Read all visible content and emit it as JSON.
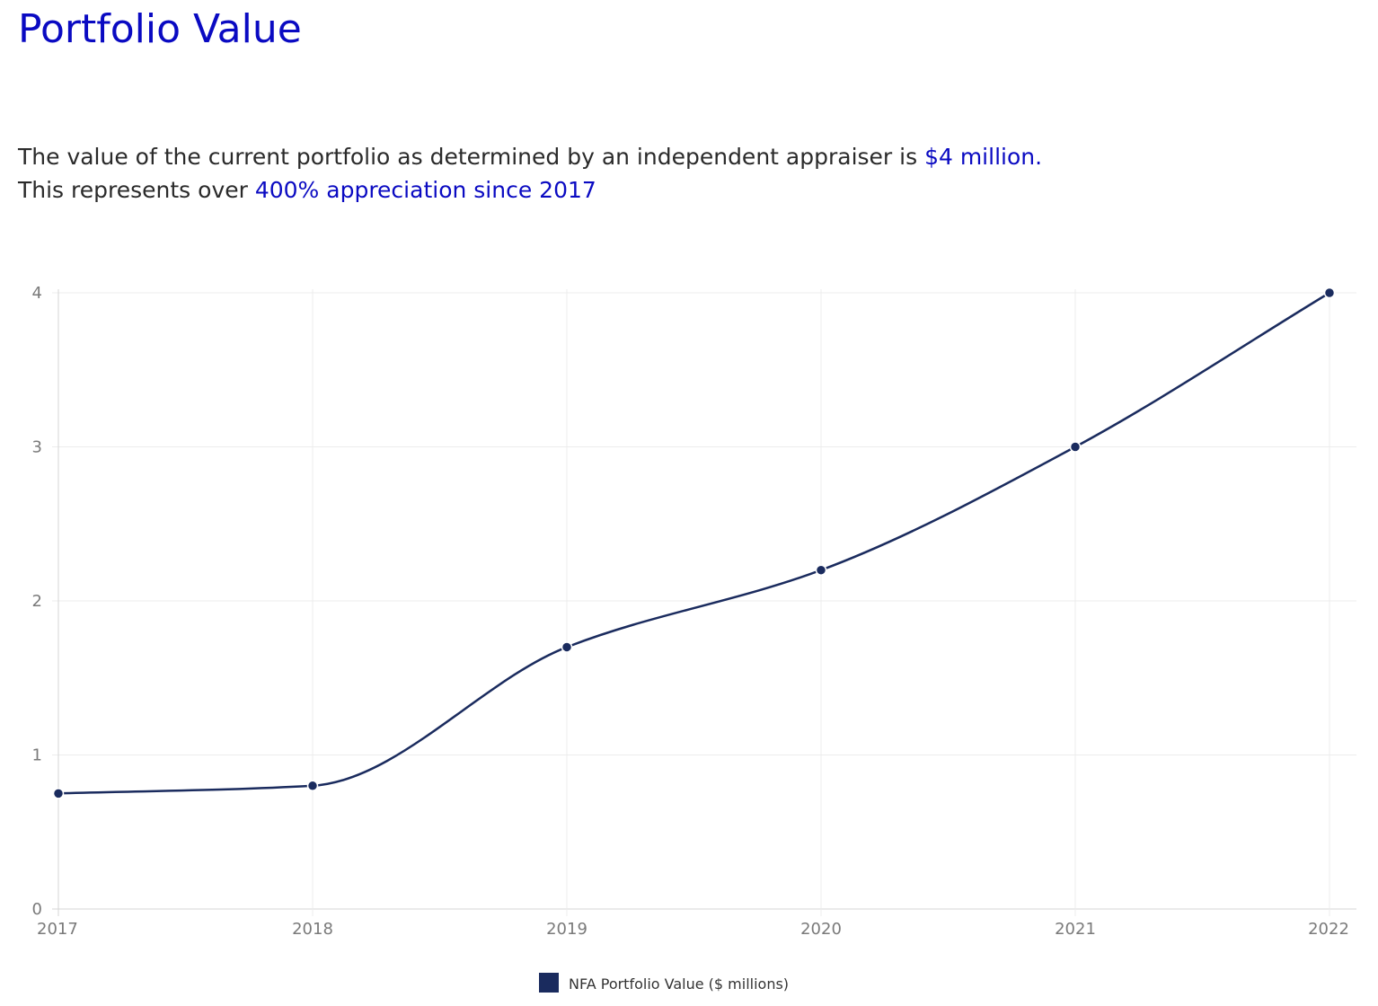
{
  "page": {
    "title": "Portfolio Value",
    "description": {
      "line1_text": "The value of the current portfolio as determined by an independent appraiser is ",
      "line1_highlight": "$4 million.",
      "line2_text": "This represents over ",
      "line2_highlight": "400% appreciation since 2017"
    }
  },
  "colors": {
    "accent": "#0a0ac2",
    "series": "#1a2b5e",
    "grid": "#ececec",
    "text": "#2a2a2a",
    "tick": "#7a7a7a"
  },
  "chart_data": {
    "type": "line",
    "title": "",
    "xlabel": "",
    "ylabel": "",
    "x": [
      "2017",
      "2018",
      "2019",
      "2020",
      "2021",
      "2022"
    ],
    "series": [
      {
        "name": "NFA Portfolio Value ($ millions)",
        "values": [
          0.75,
          0.8,
          1.7,
          2.2,
          3.0,
          4.0
        ]
      }
    ],
    "ylim": [
      0,
      4
    ],
    "yticks": [
      "0",
      "1",
      "2",
      "3",
      "4"
    ],
    "grid": true,
    "smooth": true,
    "legend": "bottom-center"
  }
}
